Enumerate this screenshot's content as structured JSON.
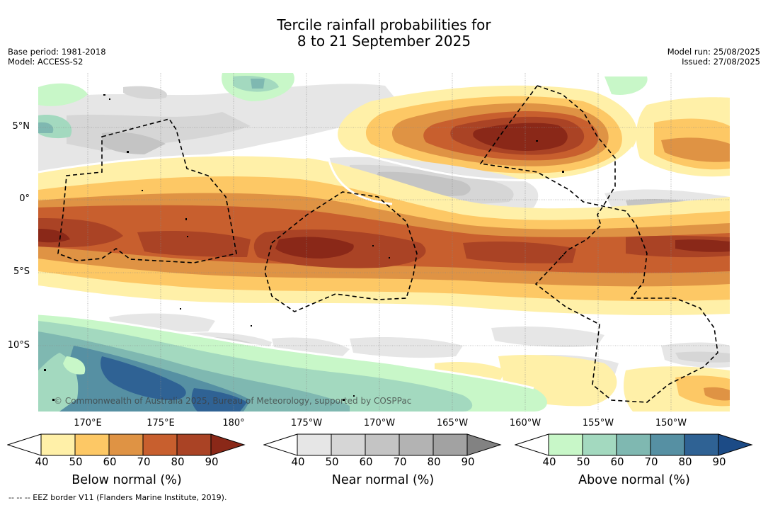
{
  "title": {
    "line1": "Tercile rainfall probabilities for",
    "line2": "8 to 21 September 2025"
  },
  "meta": {
    "base_period": "Base period: 1981-2018",
    "model": "Model: ACCESS-S2",
    "model_run": "Model run: 25/08/2025",
    "issued": "Issued: 27/08/2025"
  },
  "map": {
    "lat_labels": [
      "5°N",
      "0°",
      "5°S",
      "10°S"
    ],
    "lon_labels": [
      "170°E",
      "175°E",
      "180°",
      "175°W",
      "170°W",
      "165°W",
      "160°W",
      "155°W",
      "150°W"
    ],
    "copyright": "© Commonwealth of Australia 2025, Bureau of Meteorology, supported by COSPPac",
    "eez_border_color": "#000000"
  },
  "colorbars": {
    "below": {
      "title": "Below normal (%)",
      "ticks": [
        "40",
        "50",
        "60",
        "70",
        "80",
        "90"
      ],
      "colors": [
        "#ffffff",
        "#fff0a8",
        "#fdc865",
        "#df9344",
        "#c85f2e",
        "#aa4325",
        "#8a2818"
      ]
    },
    "near": {
      "title": "Near normal (%)",
      "ticks": [
        "40",
        "50",
        "60",
        "70",
        "80",
        "90"
      ],
      "colors": [
        "#ffffff",
        "#e6e6e6",
        "#d6d6d6",
        "#c4c4c4",
        "#b3b3b3",
        "#a2a2a2",
        "#828282"
      ]
    },
    "above": {
      "title": "Above normal (%)",
      "ticks": [
        "40",
        "50",
        "60",
        "70",
        "80",
        "90"
      ],
      "colors": [
        "#ffffff",
        "#c8f7c8",
        "#a3d9bf",
        "#7fb8b1",
        "#5690a3",
        "#2f6294",
        "#1c4b86"
      ]
    }
  },
  "footnote": "--  --  -- EEZ border V11 (Flanders Marine Institute, 2019)."
}
